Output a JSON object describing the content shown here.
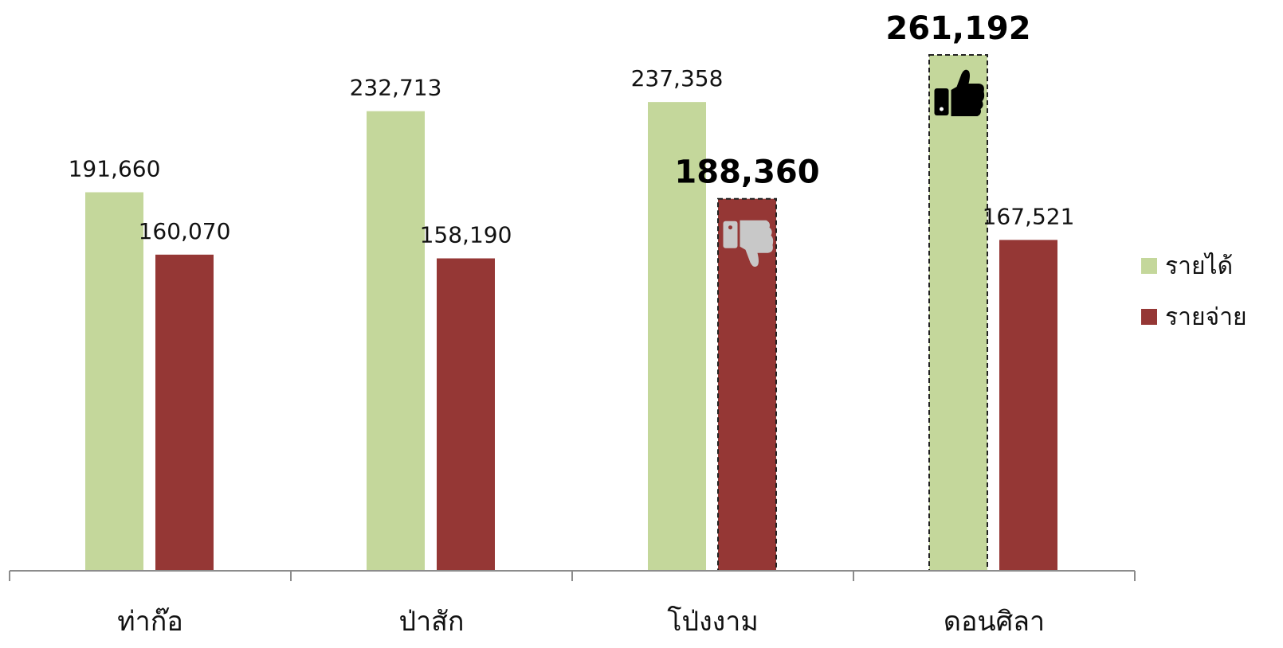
{
  "chart_data": {
    "type": "bar",
    "categories": [
      "ท่าก๊อ",
      "ป่าสัก",
      "โป่งงาม",
      "ดอนศิลา"
    ],
    "series": [
      {
        "name": "รายได้",
        "values": [
          191660,
          232713,
          237358,
          261192
        ],
        "color": "#c4d79b"
      },
      {
        "name": "รายจ่าย",
        "values": [
          160070,
          158190,
          188360,
          167521
        ],
        "color": "#953735"
      }
    ],
    "value_labels": [
      [
        "191,660",
        "232,713",
        "237,358",
        "261,192"
      ],
      [
        "160,070",
        "158,190",
        "188,360",
        "167,521"
      ]
    ],
    "highlights": [
      {
        "series": 0,
        "index": 3,
        "icon": "thumbs-up-icon"
      },
      {
        "series": 1,
        "index": 2,
        "icon": "thumbs-down-icon"
      }
    ],
    "ylim": [
      0,
      280000
    ],
    "grid": false,
    "legend_position": "right",
    "title": "",
    "xlabel": "",
    "ylabel": ""
  }
}
